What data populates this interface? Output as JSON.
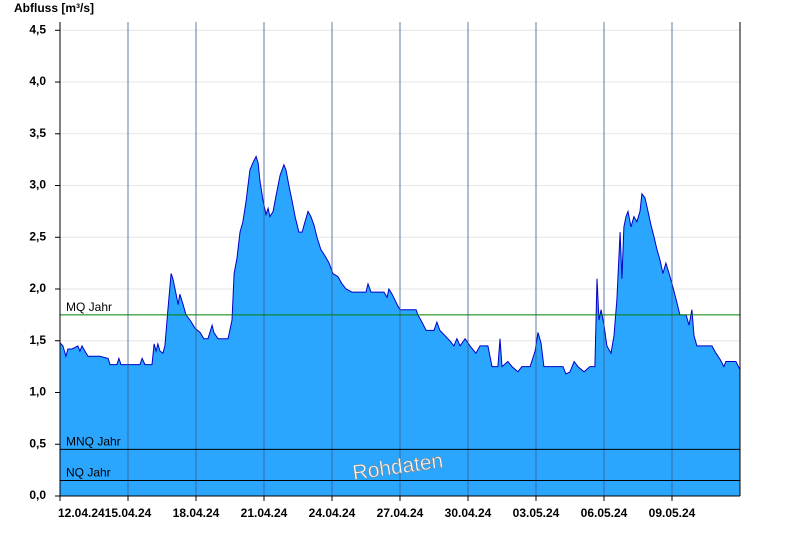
{
  "chart_data": {
    "type": "area",
    "y_label": "Abfluss [m³/s]",
    "watermark": "Rohdaten",
    "x": [
      0,
      0.13,
      0.26,
      0.35,
      0.53,
      0.79,
      0.88,
      0.97,
      1.1,
      1.24,
      1.76,
      2.12,
      2.21,
      2.51,
      2.6,
      2.69,
      3.53,
      3.62,
      3.75,
      4.06,
      4.15,
      4.24,
      4.32,
      4.41,
      4.54,
      4.63,
      4.76,
      4.9,
      4.98,
      5.12,
      5.21,
      5.29,
      5.43,
      5.56,
      5.74,
      5.96,
      6.18,
      6.35,
      6.53,
      6.71,
      6.79,
      6.97,
      7.15,
      7.41,
      7.59,
      7.68,
      7.81,
      7.94,
      8.07,
      8.21,
      8.38,
      8.51,
      8.65,
      8.74,
      8.82,
      8.96,
      9.09,
      9.18,
      9.26,
      9.4,
      9.53,
      9.71,
      9.88,
      9.97,
      10.1,
      10.24,
      10.37,
      10.54,
      10.68,
      10.81,
      10.94,
      11.07,
      11.2,
      11.34,
      11.51,
      11.69,
      11.87,
      12.04,
      12.26,
      12.44,
      12.62,
      12.88,
      13.23,
      13.5,
      13.59,
      13.72,
      14.29,
      14.43,
      14.51,
      14.65,
      14.87,
      15.0,
      15.71,
      15.79,
      15.97,
      16.15,
      16.5,
      16.63,
      16.76,
      16.98,
      17.2,
      17.38,
      17.51,
      17.65,
      17.87,
      18.09,
      18.35,
      18.53,
      18.88,
      19.06,
      19.32,
      19.41,
      19.5,
      19.76,
      19.94,
      20.2,
      20.38,
      20.74,
      20.96,
      21.09,
      21.22,
      21.35,
      21.84,
      22.19,
      22.32,
      22.5,
      22.68,
      22.85,
      23.12,
      23.38,
      23.6,
      23.69,
      23.78,
      23.87,
      24.0,
      24.13,
      24.31,
      24.44,
      24.57,
      24.71,
      24.79,
      24.88,
      24.97,
      25.06,
      25.19,
      25.32,
      25.45,
      25.59,
      25.67,
      25.81,
      25.94,
      26.07,
      26.21,
      26.34,
      26.47,
      26.6,
      26.73,
      26.87,
      27.0,
      27.18,
      27.35,
      27.62,
      27.75,
      27.88,
      27.97,
      28.1,
      28.76,
      28.94,
      29.12,
      29.29,
      29.38,
      29.82,
      30
    ],
    "series": [
      {
        "color": "#2aa6ff",
        "line_color": "#0000c8",
        "values": [
          1.48,
          1.45,
          1.35,
          1.42,
          1.42,
          1.45,
          1.4,
          1.45,
          1.4,
          1.35,
          1.35,
          1.33,
          1.27,
          1.27,
          1.33,
          1.27,
          1.27,
          1.33,
          1.27,
          1.27,
          1.47,
          1.4,
          1.47,
          1.4,
          1.38,
          1.45,
          1.8,
          2.15,
          2.1,
          1.95,
          1.85,
          1.95,
          1.85,
          1.75,
          1.7,
          1.62,
          1.58,
          1.52,
          1.52,
          1.65,
          1.58,
          1.52,
          1.52,
          1.52,
          1.7,
          2.15,
          2.3,
          2.55,
          2.65,
          2.85,
          3.15,
          3.22,
          3.28,
          3.22,
          3.05,
          2.85,
          2.72,
          2.78,
          2.7,
          2.75,
          2.9,
          3.1,
          3.2,
          3.15,
          3.0,
          2.85,
          2.7,
          2.55,
          2.55,
          2.65,
          2.75,
          2.7,
          2.62,
          2.5,
          2.38,
          2.32,
          2.25,
          2.15,
          2.12,
          2.05,
          2.0,
          1.97,
          1.97,
          1.97,
          2.05,
          1.97,
          1.97,
          1.92,
          2.0,
          1.95,
          1.85,
          1.8,
          1.8,
          1.75,
          1.68,
          1.6,
          1.6,
          1.68,
          1.6,
          1.55,
          1.5,
          1.45,
          1.52,
          1.45,
          1.52,
          1.45,
          1.38,
          1.45,
          1.45,
          1.25,
          1.25,
          1.52,
          1.25,
          1.3,
          1.25,
          1.2,
          1.25,
          1.25,
          1.4,
          1.58,
          1.48,
          1.25,
          1.25,
          1.25,
          1.18,
          1.2,
          1.3,
          1.25,
          1.2,
          1.25,
          1.25,
          2.1,
          1.7,
          1.8,
          1.65,
          1.45,
          1.38,
          1.55,
          1.9,
          2.55,
          2.1,
          2.6,
          2.7,
          2.75,
          2.6,
          2.7,
          2.65,
          2.75,
          2.92,
          2.88,
          2.75,
          2.62,
          2.5,
          2.38,
          2.28,
          2.15,
          2.25,
          2.15,
          2.05,
          1.9,
          1.75,
          1.75,
          1.65,
          1.8,
          1.55,
          1.45,
          1.45,
          1.38,
          1.32,
          1.25,
          1.3,
          1.3,
          1.22
        ]
      }
    ],
    "reference_lines": [
      {
        "label": "MQ Jahr",
        "value": 1.75,
        "color": "#008000"
      },
      {
        "label": "MNQ Jahr",
        "value": 0.45,
        "color": "#000000"
      },
      {
        "label": "NQ Jahr",
        "value": 0.15,
        "color": "#000000"
      }
    ],
    "xlim": [
      0,
      30
    ],
    "xticks": [
      {
        "value": 0,
        "label": "12.04.24"
      },
      {
        "value": 3,
        "label": "15.04.24"
      },
      {
        "value": 6,
        "label": "18.04.24"
      },
      {
        "value": 9,
        "label": "21.04.24"
      },
      {
        "value": 12,
        "label": "24.04.24"
      },
      {
        "value": 15,
        "label": "27.04.24"
      },
      {
        "value": 18,
        "label": "30.04.24"
      },
      {
        "value": 21,
        "label": "03.05.24"
      },
      {
        "value": 24,
        "label": "06.05.24"
      },
      {
        "value": 27,
        "label": "09.05.24"
      }
    ],
    "ylim": [
      0,
      4.58
    ],
    "yticks": [
      {
        "value": 0,
        "label": "0,0"
      },
      {
        "value": 0.5,
        "label": "0,5"
      },
      {
        "value": 1,
        "label": "1,0"
      },
      {
        "value": 1.5,
        "label": "1,5"
      },
      {
        "value": 2,
        "label": "2,0"
      },
      {
        "value": 2.5,
        "label": "2,5"
      },
      {
        "value": 3,
        "label": "3,0"
      },
      {
        "value": 3.5,
        "label": "3,5"
      },
      {
        "value": 4,
        "label": "4,0"
      },
      {
        "value": 4.5,
        "label": "4,5"
      }
    ],
    "grid": true
  }
}
